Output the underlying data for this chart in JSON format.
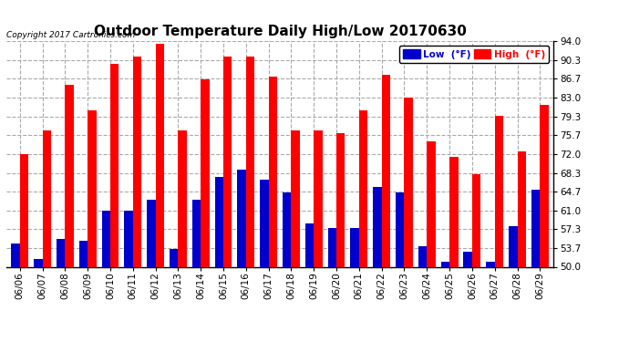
{
  "title": "Outdoor Temperature Daily High/Low 20170630",
  "copyright": "Copyright 2017 Cartronics.com",
  "yticks": [
    50.0,
    53.7,
    57.3,
    61.0,
    64.7,
    68.3,
    72.0,
    75.7,
    79.3,
    83.0,
    86.7,
    90.3,
    94.0
  ],
  "ylim": [
    50.0,
    94.0
  ],
  "dates": [
    "06/06",
    "06/07",
    "06/08",
    "06/09",
    "06/10",
    "06/11",
    "06/12",
    "06/13",
    "06/14",
    "06/15",
    "06/16",
    "06/17",
    "06/18",
    "06/19",
    "06/20",
    "06/21",
    "06/22",
    "06/23",
    "06/24",
    "06/25",
    "06/26",
    "06/27",
    "06/28",
    "06/29"
  ],
  "highs": [
    72.0,
    76.5,
    85.5,
    80.5,
    89.5,
    91.0,
    93.5,
    76.5,
    86.5,
    91.0,
    91.0,
    87.0,
    76.5,
    76.5,
    76.0,
    80.5,
    87.5,
    83.0,
    74.5,
    71.5,
    68.0,
    79.5,
    72.5,
    81.5
  ],
  "lows": [
    54.5,
    51.5,
    55.5,
    55.0,
    61.0,
    61.0,
    63.0,
    53.5,
    63.0,
    67.5,
    69.0,
    67.0,
    64.5,
    58.5,
    57.5,
    57.5,
    65.5,
    64.5,
    54.0,
    51.0,
    53.0,
    51.0,
    58.0,
    65.0
  ],
  "bar_width": 0.38,
  "high_color": "#ff0000",
  "low_color": "#0000cc",
  "bg_color": "#ffffff",
  "grid_color": "#aaaaaa",
  "title_fontsize": 11,
  "tick_fontsize": 7.5,
  "legend_low_label": "Low  (°F)",
  "legend_high_label": "High  (°F)"
}
